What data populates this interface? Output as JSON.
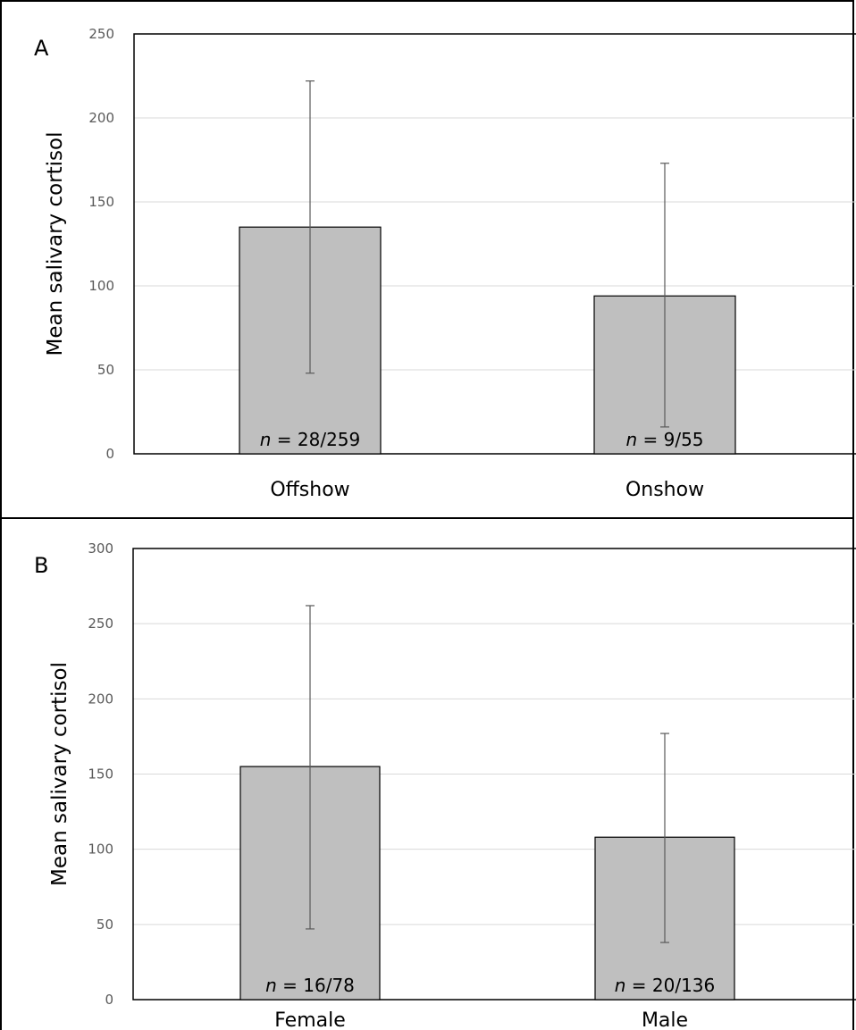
{
  "chart_data": [
    {
      "type": "bar",
      "panel_label": "A",
      "ylabel": "Mean salivary cortisol",
      "xlabel": "",
      "ylim": [
        0,
        250
      ],
      "yticks": [
        0,
        50,
        100,
        150,
        200,
        250
      ],
      "grid": true,
      "categories": [
        "Offshow",
        "Onshow"
      ],
      "values": [
        135,
        94
      ],
      "error_upper": [
        222,
        173
      ],
      "error_lower": [
        48,
        16
      ],
      "n_labels": [
        {
          "italic": "n",
          "rest": " = 28/259"
        },
        {
          "italic": "n",
          "rest": " = 9/55"
        }
      ],
      "bar_color": "#bfbfbf"
    },
    {
      "type": "bar",
      "panel_label": "B",
      "ylabel": "Mean salivary cortisol",
      "xlabel": "",
      "ylim": [
        0,
        300
      ],
      "yticks": [
        0,
        50,
        100,
        150,
        200,
        250,
        300
      ],
      "grid": true,
      "categories": [
        "Female",
        "Male"
      ],
      "values": [
        155,
        108
      ],
      "error_upper": [
        262,
        177
      ],
      "error_lower": [
        47,
        38
      ],
      "n_labels": [
        {
          "italic": "n",
          "rest": " = 16/78"
        },
        {
          "italic": "n",
          "rest": " = 20/136"
        }
      ],
      "bar_color": "#bfbfbf"
    }
  ]
}
